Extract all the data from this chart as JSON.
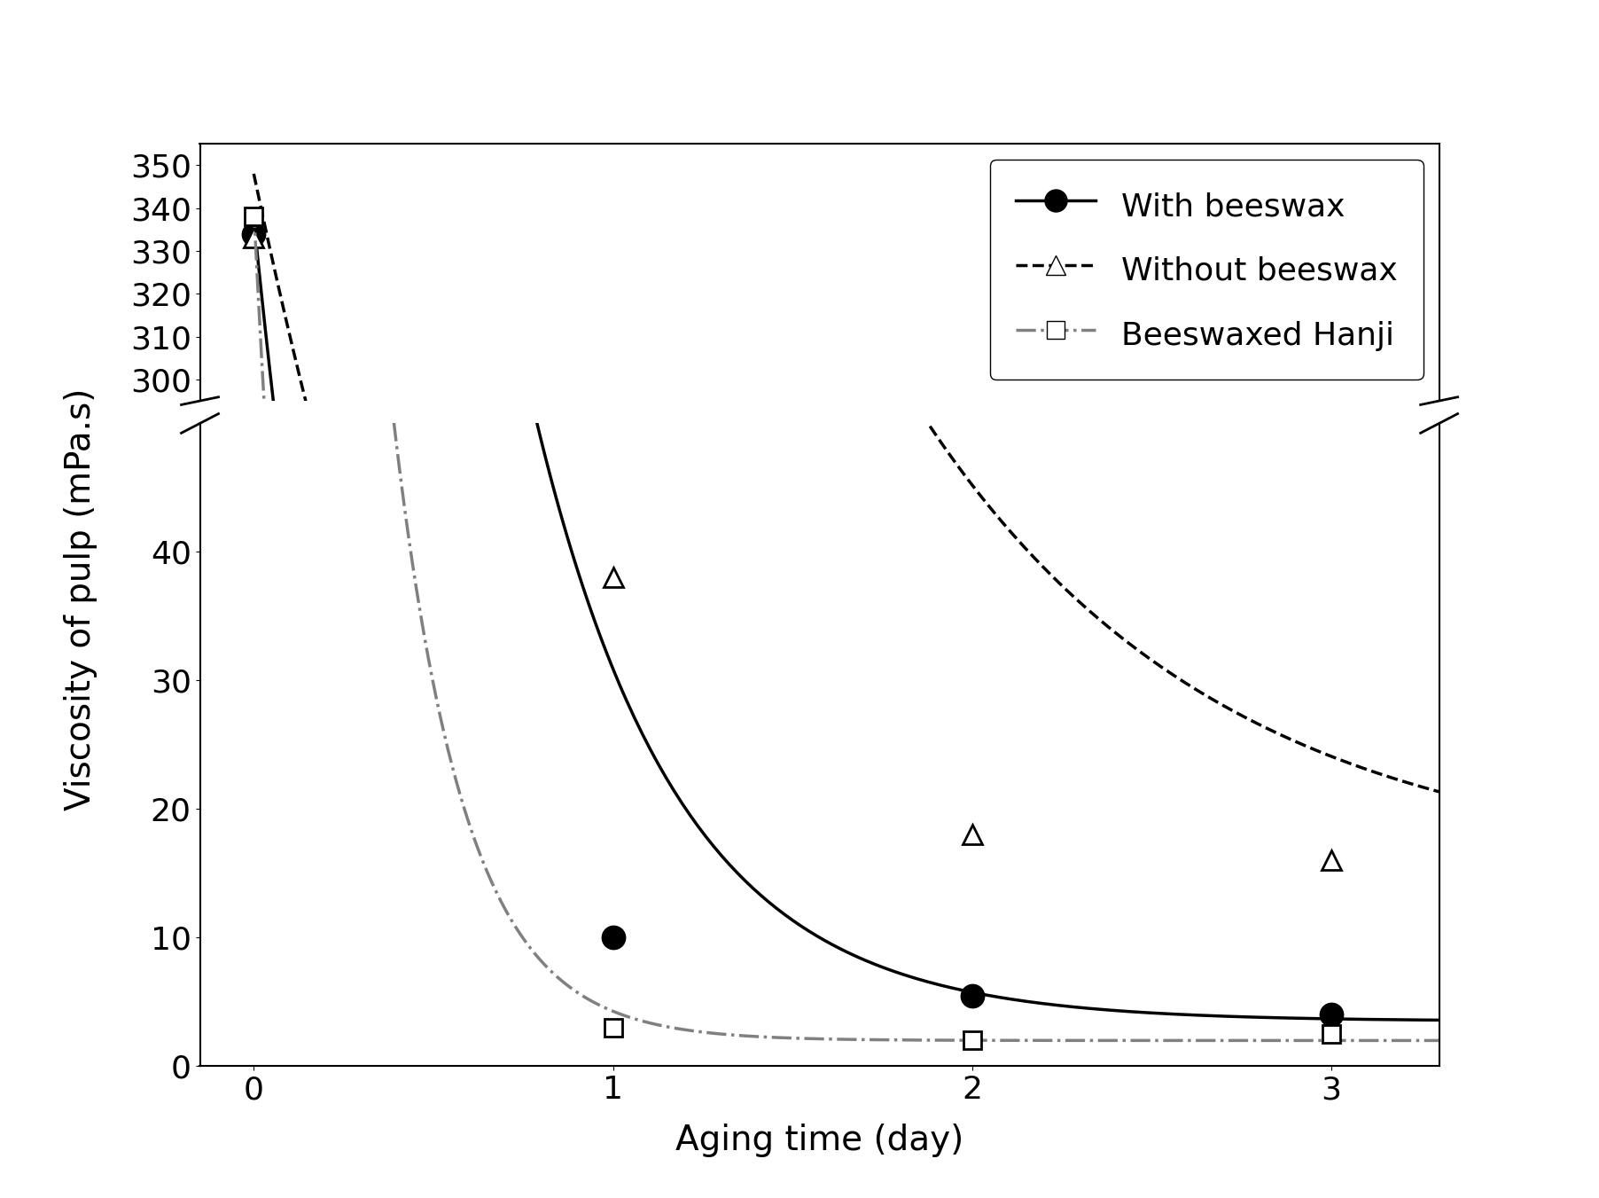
{
  "series": {
    "with_beeswax": {
      "x": [
        0,
        1,
        2,
        3
      ],
      "y": [
        334,
        10,
        5.5,
        4
      ],
      "label": "With beeswax",
      "marker": "o",
      "markersize": 18,
      "markerfacecolor": "black",
      "markeredgecolor": "black",
      "linestyle": "-",
      "linecolor": "black",
      "linewidth": 2.5
    },
    "without_beeswax": {
      "x": [
        0,
        1,
        2,
        3
      ],
      "y": [
        333,
        38,
        18,
        16
      ],
      "label": "Without beeswax",
      "marker": "^",
      "markersize": 16,
      "markerfacecolor": "white",
      "markeredgecolor": "black",
      "linestyle": "--",
      "linecolor": "black",
      "linewidth": 2.5
    },
    "beeswaxed_hanji": {
      "x": [
        0,
        1,
        2,
        3
      ],
      "y": [
        338,
        3,
        2,
        2.5
      ],
      "label": "Beeswaxed Hanji",
      "marker": "s",
      "markersize": 14,
      "markerfacecolor": "white",
      "markeredgecolor": "black",
      "linestyle": "-.",
      "linecolor": "gray",
      "linewidth": 2.5
    }
  },
  "xlabel": "Aging time (day)",
  "ylabel": "Viscosity of pulp (mPa.s)",
  "xlim": [
    -0.15,
    3.3
  ],
  "ylim_lower": [
    0,
    50
  ],
  "ylim_upper": [
    295,
    355
  ],
  "xticks": [
    0,
    1,
    2,
    3
  ],
  "yticks_lower": [
    0,
    10,
    20,
    30,
    40
  ],
  "yticks_upper": [
    300,
    310,
    320,
    330,
    340,
    350
  ],
  "xlabel_fontsize": 28,
  "ylabel_fontsize": 28,
  "tick_fontsize": 26,
  "legend_fontsize": 26,
  "break_y_lower": 47,
  "break_y_upper": 298,
  "background_color": "white"
}
